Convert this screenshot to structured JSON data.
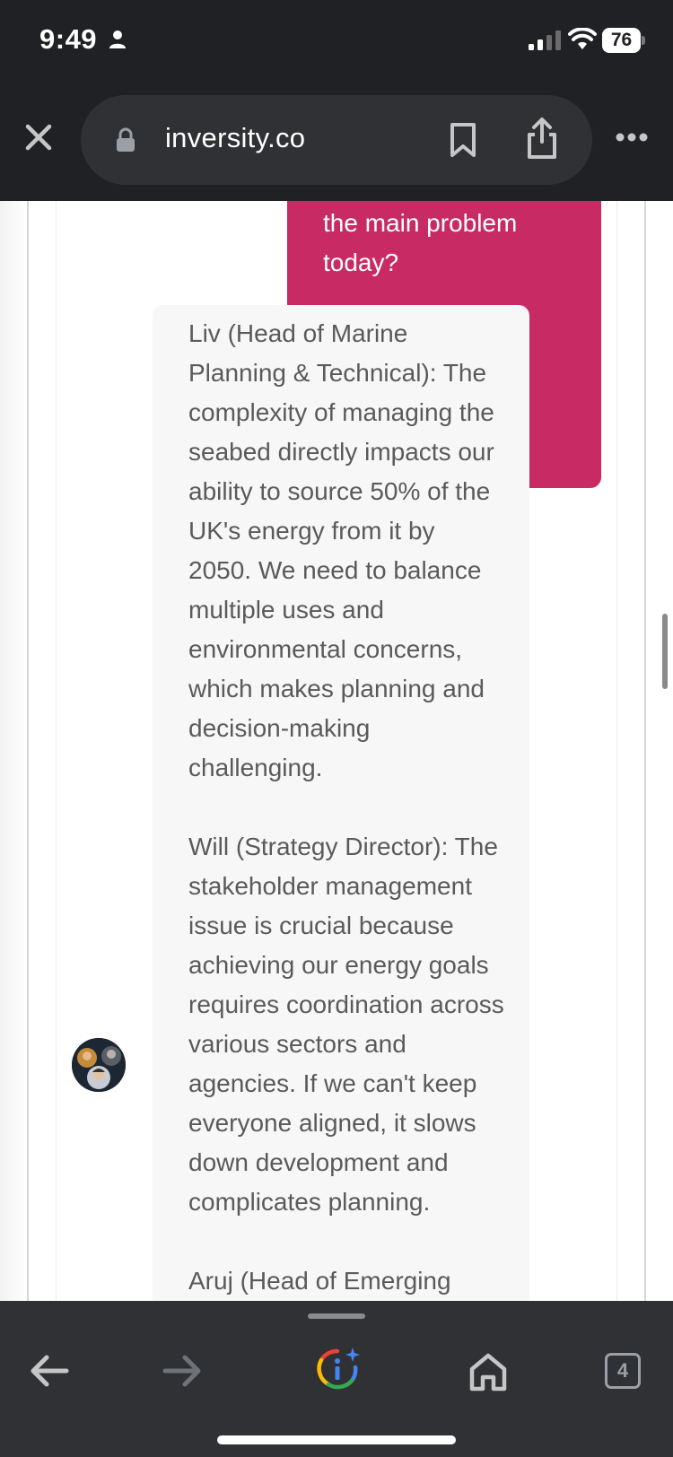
{
  "status_bar": {
    "time": "9:49",
    "battery": "76"
  },
  "browser": {
    "url": "inversity.co",
    "tab_count": "4"
  },
  "chat": {
    "user_message": "the main problem today?",
    "bot_paragraphs": [
      "Liv (Head of Marine Planning & Technical): The complexity of managing the seabed directly impacts our ability to source 50% of the UK's energy from it by 2050. We need to balance multiple uses and environmental concerns, which makes planning and decision-making challenging.",
      "Will (Strategy Director): The stakeholder management issue is crucial because achieving our energy goals requires coordination across various sectors and agencies. If we can't keep everyone aligned, it slows down development and complicates planning.",
      "Aruj (Head of Emerging"
    ]
  },
  "colors": {
    "user_bubble": "#c82b63",
    "bot_bubble": "#f7f7f7",
    "chrome_dark": "#202124",
    "toolbar": "#303134"
  },
  "icons": [
    "person-icon",
    "signal-icon",
    "wifi-icon",
    "close-icon",
    "lock-icon",
    "bookmark-icon",
    "share-icon",
    "more-icon",
    "back-icon",
    "forward-icon",
    "google-icon",
    "home-icon"
  ]
}
